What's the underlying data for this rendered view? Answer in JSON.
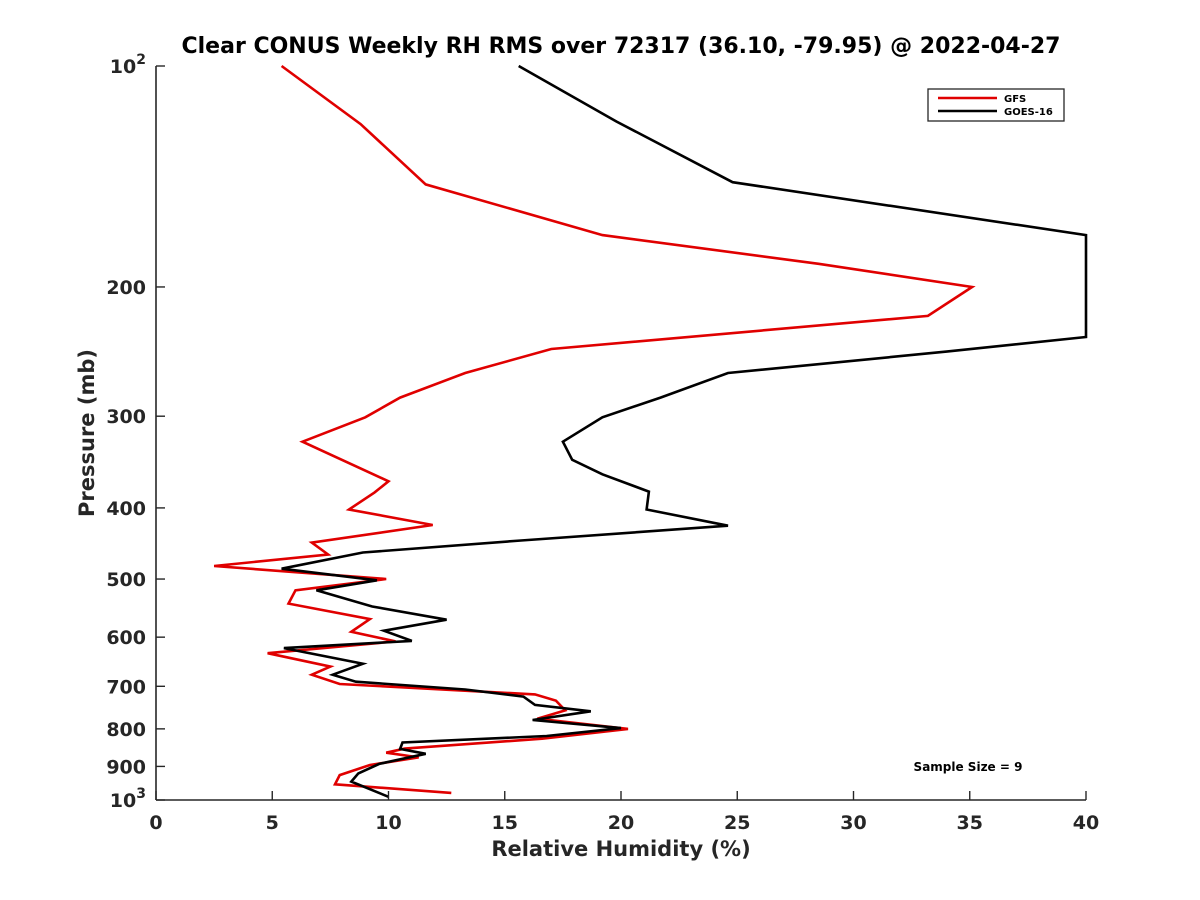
{
  "chart_data": {
    "type": "line",
    "title": "Clear CONUS Weekly RH RMS over 72317 (36.10, -79.95) @ 2022-04-27",
    "xlabel": "Relative Humidity (%)",
    "ylabel": "Pressure (mb)",
    "xlim": [
      0,
      40
    ],
    "ylim": [
      100,
      1000
    ],
    "y_scale": "log",
    "y_reversed": true,
    "x_ticks": [
      0,
      5,
      10,
      15,
      20,
      25,
      30,
      35,
      40
    ],
    "y_ticks": [
      {
        "value": 100,
        "base": "10",
        "exp": "2"
      },
      {
        "value": 200,
        "label": "200"
      },
      {
        "value": 300,
        "label": "300"
      },
      {
        "value": 400,
        "label": "400"
      },
      {
        "value": 500,
        "label": "500"
      },
      {
        "value": 600,
        "label": "600"
      },
      {
        "value": 700,
        "label": "700"
      },
      {
        "value": 800,
        "label": "800"
      },
      {
        "value": 900,
        "label": "900"
      },
      {
        "value": 1000,
        "base": "10",
        "exp": "3"
      }
    ],
    "grid": false,
    "legend_position": "top-right",
    "annotation": "Sample Size = 9",
    "series": [
      {
        "name": "GFS",
        "color": "#e00000",
        "points": [
          [
            5.4,
            100
          ],
          [
            8.8,
            120
          ],
          [
            11.6,
            145
          ],
          [
            19.2,
            170
          ],
          [
            28.5,
            186
          ],
          [
            35.1,
            200
          ],
          [
            33.2,
            219
          ],
          [
            17.0,
            243
          ],
          [
            13.3,
            262
          ],
          [
            10.5,
            283
          ],
          [
            9.0,
            301
          ],
          [
            6.3,
            325
          ],
          [
            10.0,
            368
          ],
          [
            9.4,
            381
          ],
          [
            8.3,
            402
          ],
          [
            11.9,
            422
          ],
          [
            6.7,
            446
          ],
          [
            7.4,
            463
          ],
          [
            2.5,
            480
          ],
          [
            9.9,
            500
          ],
          [
            6.0,
            518
          ],
          [
            5.7,
            540
          ],
          [
            9.2,
            567
          ],
          [
            8.4,
            590
          ],
          [
            10.3,
            608
          ],
          [
            4.8,
            631
          ],
          [
            7.5,
            658
          ],
          [
            6.7,
            675
          ],
          [
            7.9,
            695
          ],
          [
            16.3,
            718
          ],
          [
            17.2,
            732
          ],
          [
            17.6,
            755
          ],
          [
            16.4,
            775
          ],
          [
            20.3,
            800
          ],
          [
            16.6,
            825
          ],
          [
            10.7,
            851
          ],
          [
            9.9,
            862
          ],
          [
            11.3,
            875
          ],
          [
            9.2,
            896
          ],
          [
            7.9,
            925
          ],
          [
            7.7,
            952
          ],
          [
            12.7,
            978
          ]
        ]
      },
      {
        "name": "GOES-16",
        "color": "#000000",
        "points": [
          [
            15.6,
            100
          ],
          [
            19.8,
            119
          ],
          [
            24.8,
            144
          ],
          [
            40.0,
            170
          ],
          [
            40.0,
            234
          ],
          [
            34.0,
            245
          ],
          [
            24.6,
            262
          ],
          [
            21.7,
            283
          ],
          [
            19.2,
            301
          ],
          [
            17.5,
            325
          ],
          [
            17.9,
            344
          ],
          [
            19.2,
            360
          ],
          [
            21.2,
            380
          ],
          [
            21.1,
            402
          ],
          [
            24.6,
            423
          ],
          [
            15.7,
            443
          ],
          [
            8.9,
            460
          ],
          [
            5.4,
            484
          ],
          [
            9.5,
            502
          ],
          [
            6.9,
            518
          ],
          [
            9.3,
            545
          ],
          [
            12.5,
            568
          ],
          [
            9.8,
            588
          ],
          [
            11.0,
            607
          ],
          [
            5.5,
            621
          ],
          [
            8.9,
            652
          ],
          [
            7.6,
            675
          ],
          [
            8.6,
            690
          ],
          [
            13.3,
            707
          ],
          [
            15.8,
            723
          ],
          [
            16.3,
            742
          ],
          [
            18.7,
            757
          ],
          [
            16.2,
            778
          ],
          [
            20.0,
            798
          ],
          [
            16.8,
            818
          ],
          [
            10.6,
            835
          ],
          [
            10.5,
            852
          ],
          [
            11.6,
            865
          ],
          [
            9.6,
            893
          ],
          [
            8.7,
            920
          ],
          [
            8.4,
            944
          ],
          [
            10.0,
            990
          ]
        ]
      }
    ]
  }
}
